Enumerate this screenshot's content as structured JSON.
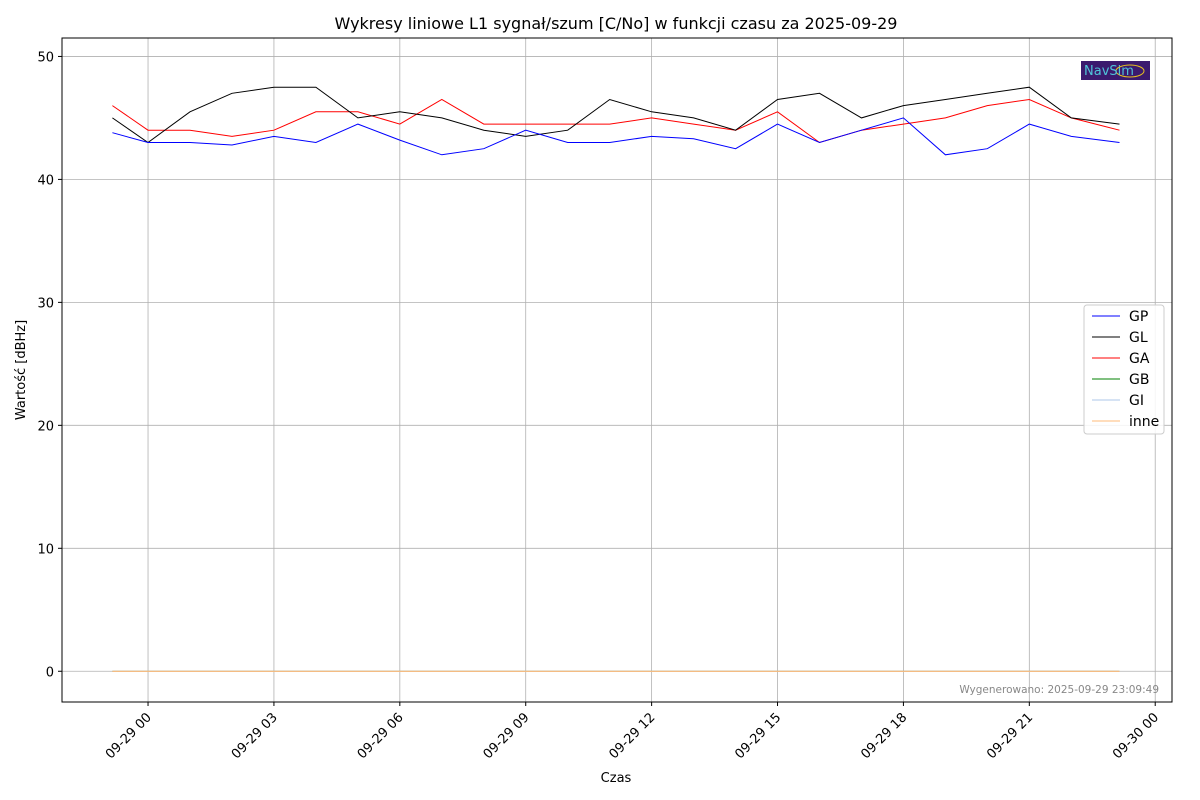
{
  "chart_data": {
    "type": "line",
    "title": "Wykresy liniowe L1 sygnał/szum [C/No] w funkcji czasu za 2025-09-29",
    "xlabel": "Czas",
    "ylabel": "Wartość [dBHz]",
    "ylim": [
      -2.5,
      51.5
    ],
    "xlim_hours": [
      -2.05,
      24.4
    ],
    "yticks": [
      0,
      10,
      20,
      30,
      40,
      50
    ],
    "xticks": [
      {
        "hour": 0,
        "label": "09-29 00"
      },
      {
        "hour": 3,
        "label": "09-29 03"
      },
      {
        "hour": 6,
        "label": "09-29 06"
      },
      {
        "hour": 9,
        "label": "09-29 09"
      },
      {
        "hour": 12,
        "label": "09-29 12"
      },
      {
        "hour": 15,
        "label": "09-29 15"
      },
      {
        "hour": 18,
        "label": "09-29 18"
      },
      {
        "hour": 21,
        "label": "09-29 21"
      },
      {
        "hour": 24,
        "label": "09-30 00"
      }
    ],
    "grid": true,
    "legend_position": "center-right",
    "x_hours": [
      -0.85,
      0,
      1,
      2,
      3,
      4,
      5,
      6,
      7,
      8,
      9,
      10,
      11,
      12,
      13,
      14,
      15,
      16,
      17,
      18,
      19,
      20,
      21,
      22,
      23.15
    ],
    "series": [
      {
        "name": "GP",
        "color": "#0000ff",
        "values": [
          43.8,
          43,
          43,
          42.8,
          43.5,
          43,
          44.5,
          43.2,
          42,
          42.5,
          44,
          43,
          43,
          43.5,
          43.3,
          42.5,
          44.5,
          43,
          44,
          45,
          42,
          42.5,
          44.5,
          43.5,
          43
        ]
      },
      {
        "name": "GL",
        "color": "#000000",
        "values": [
          45,
          43,
          45.5,
          47,
          47.5,
          47.5,
          45,
          45.5,
          45,
          44,
          43.5,
          44,
          46.5,
          45.5,
          45,
          44,
          46.5,
          47,
          45,
          46,
          46.5,
          47,
          47.5,
          45,
          44.5
        ]
      },
      {
        "name": "GA",
        "color": "#ff0000",
        "values": [
          46,
          44,
          44,
          43.5,
          44,
          45.5,
          45.5,
          44.5,
          46.5,
          44.5,
          44.5,
          44.5,
          44.5,
          45,
          44.5,
          44,
          45.5,
          43,
          44,
          44.5,
          45,
          46,
          46.5,
          45,
          44
        ]
      },
      {
        "name": "GB",
        "color": "#008000",
        "values": [
          0,
          0,
          0,
          0,
          0,
          0,
          0,
          0,
          0,
          0,
          0,
          0,
          0,
          0,
          0,
          0,
          0,
          0,
          0,
          0,
          0,
          0,
          0,
          0,
          0
        ]
      },
      {
        "name": "GI",
        "color": "#aec7e8",
        "values": [
          0,
          0,
          0,
          0,
          0,
          0,
          0,
          0,
          0,
          0,
          0,
          0,
          0,
          0,
          0,
          0,
          0,
          0,
          0,
          0,
          0,
          0,
          0,
          0,
          0
        ]
      },
      {
        "name": "inne",
        "color": "#ffbb78",
        "values": [
          0,
          0,
          0,
          0,
          0,
          0,
          0,
          0,
          0,
          0,
          0,
          0,
          0,
          0,
          0,
          0,
          0,
          0,
          0,
          0,
          0,
          0,
          0,
          0,
          0
        ]
      }
    ],
    "annotation": "Wygenerowano: 2025-09-29 23:09:49",
    "logo_text": "NavSim"
  }
}
